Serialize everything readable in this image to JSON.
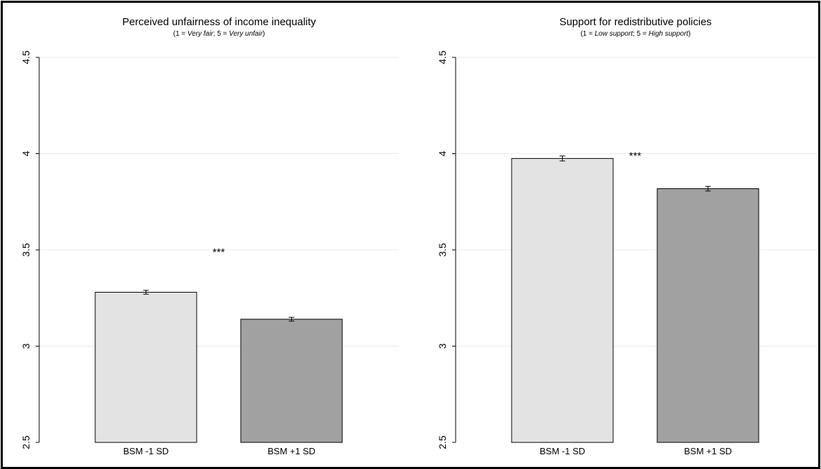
{
  "chart_data": [
    {
      "type": "bar",
      "title": "Perceived unfairness of income inequality",
      "subtitle": {
        "prefix": "(1 = ",
        "low": "Very fair",
        "sep": "; 5 = ",
        "high": "Very unfair",
        "suffix": ")"
      },
      "categories": [
        "BSM -1 SD",
        "BSM +1 SD"
      ],
      "values": [
        3.28,
        3.14
      ],
      "errors": [
        0.01,
        0.01
      ],
      "colors": [
        "#e3e3e3",
        "#a1a1a1"
      ],
      "ylim": [
        2.5,
        4.5
      ],
      "yticks": [
        "2.5",
        "3",
        "3.5",
        "4",
        "4.5"
      ],
      "grid": true,
      "annotation": {
        "text": "***",
        "y": 3.5
      }
    },
    {
      "type": "bar",
      "title": "Support for redistributive policies",
      "subtitle": {
        "prefix": "(1 = ",
        "low": "Low support",
        "sep": "; 5 = ",
        "high": "High support",
        "suffix": ")"
      },
      "categories": [
        "BSM -1 SD",
        "BSM +1 SD"
      ],
      "values": [
        3.975,
        3.818
      ],
      "errors": [
        0.013,
        0.012
      ],
      "colors": [
        "#e3e3e3",
        "#a1a1a1"
      ],
      "ylim": [
        2.5,
        4.5
      ],
      "yticks": [
        "2.5",
        "3",
        "3.5",
        "4",
        "4.5"
      ],
      "grid": true,
      "annotation": {
        "text": "***",
        "y": 4.0
      }
    }
  ]
}
